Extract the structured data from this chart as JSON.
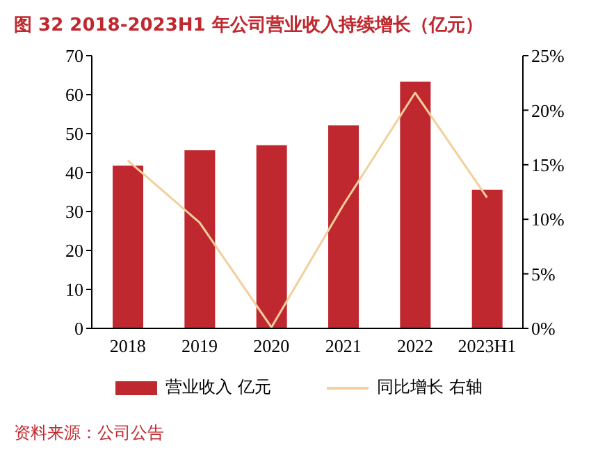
{
  "chart_data": {
    "type": "bar",
    "title": "图 32 2018-2023H1 年公司营业收入持续增长（亿元）",
    "categories": [
      "2018",
      "2019",
      "2020",
      "2021",
      "2022",
      "2023H1"
    ],
    "series": [
      {
        "name": "营业收入 亿元",
        "color": "#c0282f",
        "values": [
          41.8,
          45.7,
          47.0,
          52.1,
          63.3,
          35.6
        ]
      },
      {
        "name": "同比增长 右轴",
        "type": "line",
        "axis": "y2",
        "color": "#f2cf9b",
        "values": [
          15.4,
          9.7,
          0.1,
          11.3,
          21.6,
          12.0
        ]
      }
    ],
    "ylim": [
      0,
      70
    ],
    "yticks": [
      0,
      10,
      20,
      30,
      40,
      50,
      60,
      70
    ],
    "y2lim": [
      0,
      25
    ],
    "y2ticks": [
      {
        "value": 0,
        "label": "0%"
      },
      {
        "value": 5,
        "label": "5%"
      },
      {
        "value": 10,
        "label": "10%"
      },
      {
        "value": 15,
        "label": "15%"
      },
      {
        "value": 20,
        "label": "20%"
      },
      {
        "value": 25,
        "label": "25%"
      }
    ],
    "grid": false,
    "legend": "bottom",
    "marker": "none",
    "annotations": [
      "资料来源：公司公告"
    ]
  }
}
